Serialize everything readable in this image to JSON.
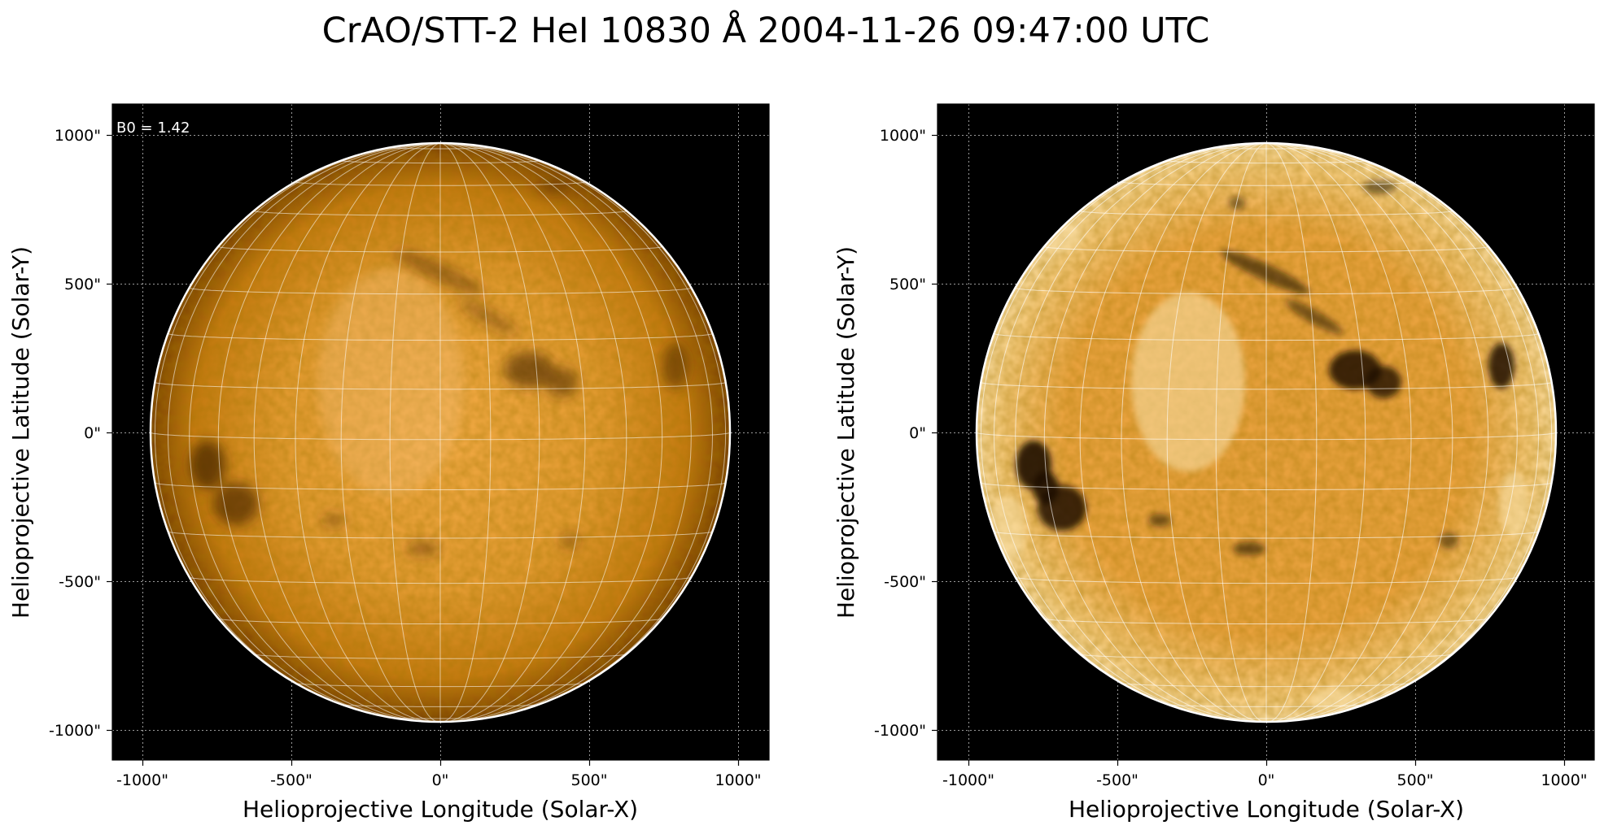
{
  "figure": {
    "title": "CrAO/STT-2 HeI 10830 Å 2004-11-26 09:47:00 UTC"
  },
  "panels": [
    {
      "id": "left",
      "annotation": "B0 = 1.42",
      "xlabel": "Helioprojective Longitude (Solar-X)",
      "ylabel": "Helioprojective Latitude (Solar-Y)",
      "x_ticks": [
        "-1000\"",
        "-500\"",
        "0\"",
        "500\"",
        "1000\""
      ],
      "y_ticks": [
        "1000\"",
        "500\"",
        "0\"",
        "-500\"",
        "-1000\""
      ],
      "image_style": "original"
    },
    {
      "id": "right",
      "xlabel": "Helioprojective Longitude (Solar-X)",
      "ylabel": "Helioprojective Latitude (Solar-Y)",
      "x_ticks": [
        "-1000\"",
        "-500\"",
        "0\"",
        "500\"",
        "1000\""
      ],
      "y_ticks": [
        "1000\"",
        "500\"",
        "0\"",
        "-500\"",
        "-1000\""
      ],
      "image_style": "contrast-enhanced"
    }
  ],
  "axes": {
    "x_range_arcsec": [
      -1100,
      1100
    ],
    "y_range_arcsec": [
      -1100,
      1100
    ],
    "tick_values_arcsec": [
      -1000,
      -500,
      0,
      500,
      1000
    ],
    "solar_radius_arcsec": 972,
    "grid": "dotted"
  },
  "colors": {
    "background": "#000000",
    "disk_center": "#f2aa45",
    "disk_mid": "#d98c1a",
    "disk_limb": "#7a4200",
    "grid_lines": "#ffffff",
    "limb_circle": "#ffffff"
  }
}
